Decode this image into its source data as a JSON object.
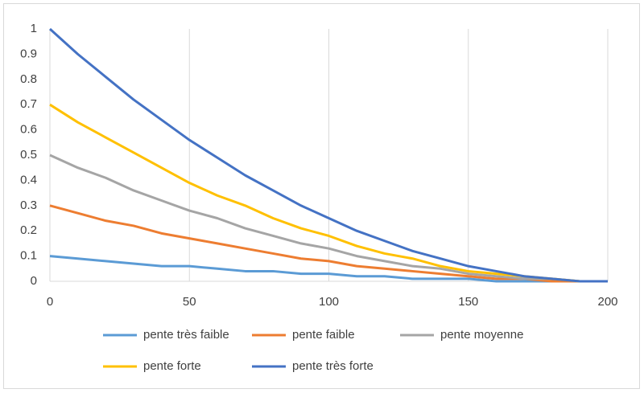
{
  "chart_data": {
    "type": "line",
    "x": [
      0,
      10,
      20,
      30,
      40,
      50,
      60,
      70,
      80,
      90,
      100,
      110,
      120,
      130,
      140,
      150,
      160,
      170,
      180,
      190,
      200
    ],
    "series": [
      {
        "name": "pente très faible",
        "color": "#5b9bd5",
        "values": [
          0.1,
          0.09,
          0.08,
          0.07,
          0.06,
          0.06,
          0.05,
          0.04,
          0.04,
          0.03,
          0.03,
          0.02,
          0.02,
          0.01,
          0.01,
          0.01,
          0,
          0,
          0,
          0,
          0
        ]
      },
      {
        "name": "pente faible",
        "color": "#ed7d31",
        "values": [
          0.3,
          0.27,
          0.24,
          0.22,
          0.19,
          0.17,
          0.15,
          0.13,
          0.11,
          0.09,
          0.08,
          0.06,
          0.05,
          0.04,
          0.03,
          0.02,
          0.01,
          0.01,
          0,
          0,
          0
        ]
      },
      {
        "name": "pente moyenne",
        "color": "#a5a5a5",
        "values": [
          0.5,
          0.45,
          0.41,
          0.36,
          0.32,
          0.28,
          0.25,
          0.21,
          0.18,
          0.15,
          0.13,
          0.1,
          0.08,
          0.06,
          0.05,
          0.03,
          0.02,
          0.01,
          0.01,
          0,
          0
        ]
      },
      {
        "name": "pente forte",
        "color": "#ffc000",
        "values": [
          0.7,
          0.63,
          0.57,
          0.51,
          0.45,
          0.39,
          0.34,
          0.3,
          0.25,
          0.21,
          0.18,
          0.14,
          0.11,
          0.09,
          0.06,
          0.04,
          0.03,
          0.02,
          0.01,
          0,
          0
        ]
      },
      {
        "name": "pente très forte",
        "color": "#4472c4",
        "values": [
          1,
          0.9,
          0.81,
          0.72,
          0.64,
          0.56,
          0.49,
          0.42,
          0.36,
          0.3,
          0.25,
          0.2,
          0.16,
          0.12,
          0.09,
          0.06,
          0.04,
          0.02,
          0.01,
          0,
          0
        ]
      }
    ],
    "xlim": [
      0,
      200
    ],
    "xticks": [
      0,
      50,
      100,
      150,
      200
    ],
    "ylim": [
      0,
      1
    ],
    "yticks": [
      0,
      0.1,
      0.2,
      0.3,
      0.4,
      0.5,
      0.6,
      0.7,
      0.8,
      0.9,
      1
    ],
    "x_grid": true,
    "legend": "bottom"
  }
}
